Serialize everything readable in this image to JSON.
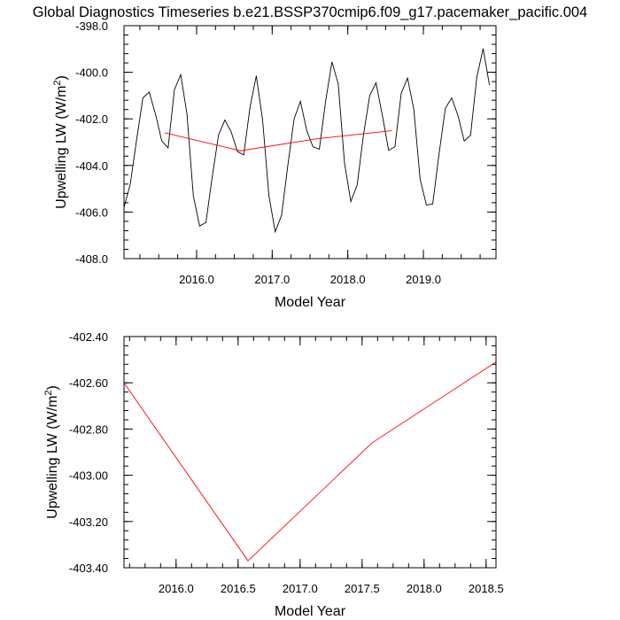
{
  "title": "Global Diagnostics Timeseries b.e21.BSSP370cmip6.f09_g17.pacemaker_pacific.004",
  "chart_data": [
    {
      "type": "line",
      "xlabel": "Model Year",
      "ylabel_main": "Upwelling LW (W/m",
      "ylabel_sup": "2",
      "ylabel_close": ")",
      "xlim": [
        2015.04,
        2019.96
      ],
      "ylim": [
        -408.0,
        -398.0
      ],
      "x_ticks": [
        2016.0,
        2017.0,
        2018.0,
        2019.0
      ],
      "x_tick_labels": [
        "2016.0",
        "2017.0",
        "2018.0",
        "2019.0"
      ],
      "y_ticks": [
        -408.0,
        -406.0,
        -404.0,
        -402.0,
        -400.0,
        -398.0
      ],
      "y_tick_labels": [
        "-408.0",
        "-406.0",
        "-404.0",
        "-402.0",
        "-400.0",
        "-398.0"
      ],
      "grid": false,
      "series": [
        {
          "color": "#000000",
          "x_start": 2015.04,
          "x_step": 0.08333333,
          "values": [
            -405.8,
            -404.8,
            -402.9,
            -401.1,
            -400.85,
            -401.8,
            -402.95,
            -403.25,
            -400.75,
            -400.1,
            -401.8,
            -405.3,
            -406.6,
            -406.45,
            -404.5,
            -402.7,
            -402.05,
            -402.55,
            -403.4,
            -403.55,
            -401.5,
            -400.15,
            -402.05,
            -405.3,
            -406.85,
            -406.15,
            -404.0,
            -402.0,
            -401.25,
            -402.5,
            -403.2,
            -403.3,
            -401.25,
            -399.55,
            -400.5,
            -403.9,
            -405.55,
            -404.85,
            -402.7,
            -401.0,
            -400.45,
            -401.85,
            -403.35,
            -403.2,
            -400.9,
            -400.25,
            -401.6,
            -404.6,
            -405.7,
            -405.65,
            -403.5,
            -401.55,
            -401.1,
            -401.85,
            -402.95,
            -402.7,
            -400.2,
            -398.98,
            -400.55
          ]
        },
        {
          "color": "#ff0000",
          "x": [
            2015.58,
            2016.58,
            2017.58,
            2018.58
          ],
          "values": [
            -402.6,
            -403.37,
            -402.86,
            -402.51
          ]
        }
      ]
    },
    {
      "type": "line",
      "xlabel": "Model Year",
      "ylabel_main": "Upwelling LW (W/m",
      "ylabel_sup": "2",
      "ylabel_close": ")",
      "xlim": [
        2015.58,
        2018.58
      ],
      "ylim": [
        -403.4,
        -402.4
      ],
      "x_ticks": [
        2016.0,
        2016.5,
        2017.0,
        2017.5,
        2018.0,
        2018.5
      ],
      "x_tick_labels": [
        "2016.0",
        "2016.5",
        "2017.0",
        "2017.5",
        "2018.0",
        "2018.5"
      ],
      "y_ticks": [
        -403.4,
        -403.2,
        -403.0,
        -402.8,
        -402.6,
        -402.4
      ],
      "y_tick_labels": [
        "-403.40",
        "-403.20",
        "-403.00",
        "-402.80",
        "-402.60",
        "-402.40"
      ],
      "grid": false,
      "series": [
        {
          "color": "#ff0000",
          "x": [
            2015.58,
            2016.58,
            2017.58,
            2018.58
          ],
          "values": [
            -402.6,
            -403.37,
            -402.86,
            -402.51
          ]
        }
      ]
    }
  ]
}
